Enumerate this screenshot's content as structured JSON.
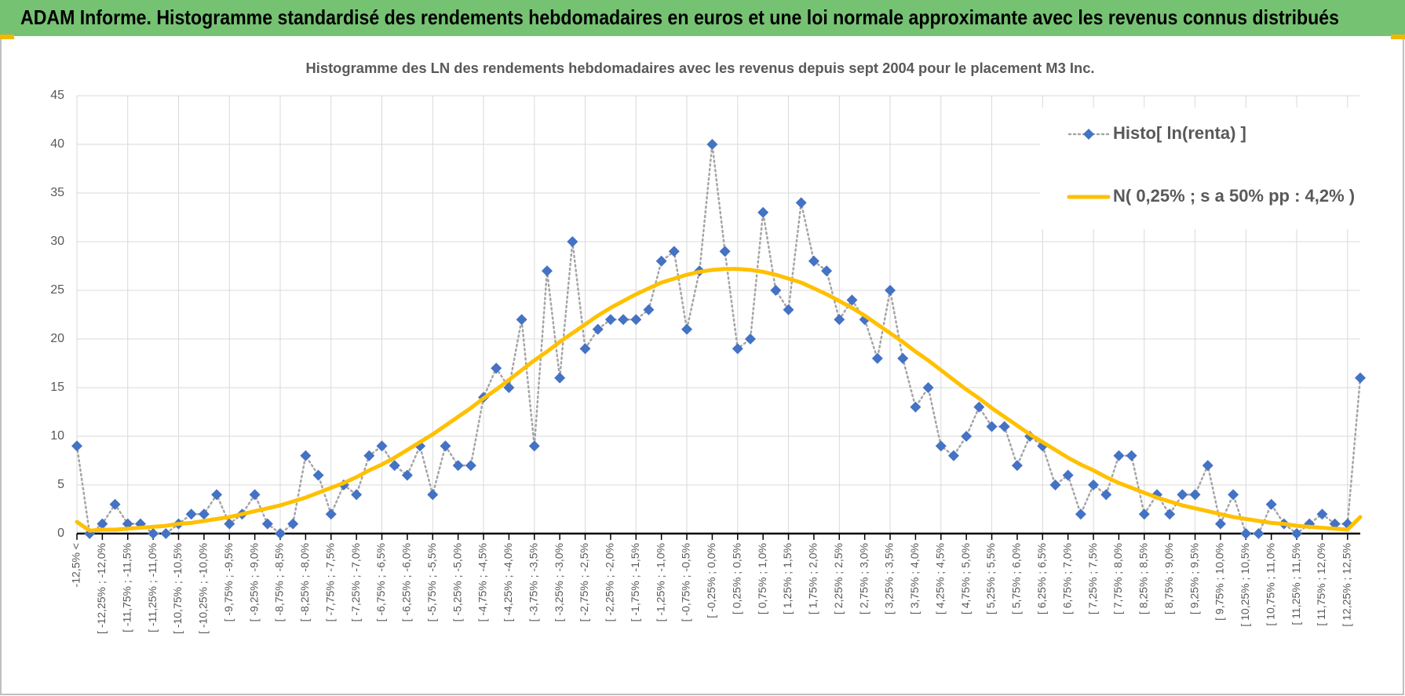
{
  "header": {
    "title": "ADAM Informe. Histogramme standardisé des rendements hebdomadaires en euros et une loi normale approximante avec les revenus connus distribués"
  },
  "chart_data": {
    "type": "line",
    "title": "Histogramme des LN des rendements hebdomadaires avec les revenus depuis sept 2004 pour le placement M3 Inc.",
    "categories": [
      "-12,5% <",
      null,
      "[ -12,25% ; -12,0%",
      null,
      "[ -11,75% ; -11,5%",
      null,
      "[ -11,25% ; -11,0%",
      null,
      "[ -10,75% ; -10,5%",
      null,
      "[ -10,25% ; -10,0%",
      null,
      "[ -9,75% ; -9,5%",
      null,
      "[ -9,25% ; -9,0%",
      null,
      "[ -8,75% ; -8,5%",
      null,
      "[ -8,25% ; -8,0%",
      null,
      "[ -7,75% ; -7,5%",
      null,
      "[ -7,25% ; -7,0%",
      null,
      "[ -6,75% ; -6,5%",
      null,
      "[ -6,25% ; -6,0%",
      null,
      "[ -5,75% ; -5,5%",
      null,
      "[ -5,25% ; -5,0%",
      null,
      "[ -4,75% ; -4,5%",
      null,
      "[ -4,25% ; -4,0%",
      null,
      "[ -3,75% ; -3,5%",
      null,
      "[ -3,25% ; -3,0%",
      null,
      "[ -2,75% ; -2,5%",
      null,
      "[ -2,25% ; -2,0%",
      null,
      "[ -1,75% ; -1,5%",
      null,
      "[ -1,25% ; -1,0%",
      null,
      "[ -0,75% ; -0,5%",
      null,
      "[ -0,25% ; 0,0%",
      null,
      "[ 0,25% ; 0,5%",
      null,
      "[ 0,75% ; 1,0%",
      null,
      "[ 1,25% ; 1,5%",
      null,
      "[ 1,75% ; 2,0%",
      null,
      "[ 2,25% ; 2,5%",
      null,
      "[ 2,75% ; 3,0%",
      null,
      "[ 3,25% ; 3,5%",
      null,
      "[ 3,75% ; 4,0%",
      null,
      "[ 4,25% ; 4,5%",
      null,
      "[ 4,75% ; 5,0%",
      null,
      "[ 5,25% ; 5,5%",
      null,
      "[ 5,75% ; 6,0%",
      null,
      "[ 6,25% ; 6,5%",
      null,
      "[ 6,75% ; 7,0%",
      null,
      "[ 7,25% ; 7,5%",
      null,
      "[ 7,75% ; 8,0%",
      null,
      "[ 8,25% ; 8,5%",
      null,
      "[ 8,75% ; 9,0%",
      null,
      "[ 9,25% ; 9,5%",
      null,
      "[ 9,75% ; 10,0%",
      null,
      "[ 10,25% ; 10,5%",
      null,
      "[ 10,75% ; 11,0%",
      null,
      "[ 11,25% ; 11,5%",
      null,
      "[ 11,75% ; 12,0%",
      null,
      "[ 12,25% ; 12,5%",
      null
    ],
    "series": [
      {
        "name": "Histo[ ln(renta) ]",
        "color": "#4472c4",
        "line_color": "#a5a5a5",
        "line_style": "dotted",
        "marker": "diamond",
        "values": [
          9,
          0,
          1,
          3,
          1,
          1,
          0,
          0,
          1,
          2,
          2,
          4,
          1,
          2,
          4,
          1,
          0,
          1,
          8,
          6,
          2,
          5,
          4,
          8,
          9,
          7,
          6,
          9,
          4,
          9,
          7,
          7,
          14,
          17,
          15,
          22,
          9,
          27,
          16,
          30,
          19,
          21,
          22,
          22,
          22,
          23,
          28,
          29,
          21,
          27,
          40,
          29,
          19,
          20,
          33,
          25,
          23,
          34,
          28,
          27,
          22,
          24,
          22,
          18,
          25,
          18,
          13,
          15,
          9,
          8,
          10,
          13,
          11,
          11,
          7,
          10,
          9,
          5,
          6,
          2,
          5,
          4,
          8,
          8,
          2,
          4,
          2,
          4,
          4,
          7,
          1,
          4,
          0,
          0,
          3,
          1,
          0,
          1,
          2,
          1,
          1,
          16
        ]
      },
      {
        "name": "N( 0,25% ; s a 50% pp : 4,2% )",
        "color": "#ffc000",
        "line_style": "solid",
        "marker": "none",
        "values": [
          1.2,
          0.3,
          0.4,
          0.4,
          0.5,
          0.6,
          0.7,
          0.8,
          1.0,
          1.1,
          1.3,
          1.5,
          1.7,
          2.0,
          2.3,
          2.6,
          2.9,
          3.3,
          3.7,
          4.2,
          4.7,
          5.2,
          5.8,
          6.5,
          7.1,
          7.8,
          8.6,
          9.4,
          10.2,
          11.1,
          12.0,
          12.9,
          13.9,
          14.8,
          15.8,
          16.8,
          17.8,
          18.7,
          19.7,
          20.6,
          21.5,
          22.4,
          23.2,
          23.9,
          24.6,
          25.2,
          25.8,
          26.2,
          26.6,
          26.9,
          27.1,
          27.2,
          27.2,
          27.1,
          26.9,
          26.6,
          26.2,
          25.8,
          25.2,
          24.6,
          23.9,
          23.2,
          22.4,
          21.5,
          20.6,
          19.7,
          18.7,
          17.8,
          16.8,
          15.8,
          14.8,
          13.9,
          12.9,
          12.0,
          11.1,
          10.2,
          9.4,
          8.6,
          7.8,
          7.1,
          6.5,
          5.8,
          5.2,
          4.7,
          4.2,
          3.7,
          3.3,
          2.9,
          2.6,
          2.3,
          2.0,
          1.7,
          1.5,
          1.3,
          1.1,
          1.0,
          0.8,
          0.7,
          0.6,
          0.5,
          0.4,
          1.7
        ]
      }
    ],
    "ylim": [
      0,
      45
    ],
    "yticks": [
      0,
      5,
      10,
      15,
      20,
      25,
      30,
      35,
      40,
      45
    ],
    "grid": true,
    "legend": "upper right"
  }
}
